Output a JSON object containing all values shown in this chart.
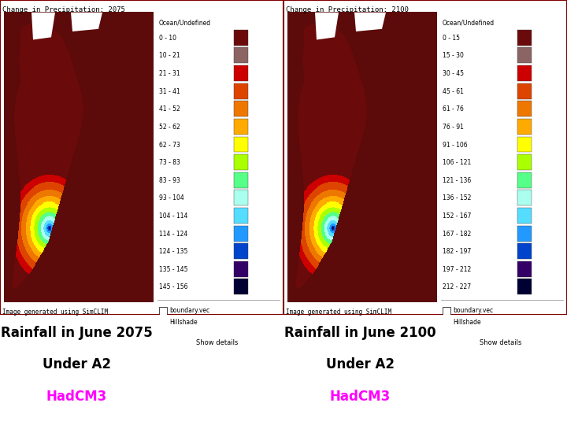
{
  "fig_width": 7.2,
  "fig_height": 5.4,
  "dpi": 100,
  "bg_color": "#ffffff",
  "left_title": "Rainfall in June 2075",
  "left_subtitle": "Under A2",
  "left_model": "HadCM3",
  "right_title": "Rainfall in June 2100",
  "right_subtitle": "Under A2",
  "right_model": "HadCM3",
  "title_fontsize": 12,
  "model_color": "#ff00ff",
  "title_color": "#000000",
  "panel_title_2075": "Change in Precipitation: 2075",
  "panel_title_2100": "Change in Precipitation: 2100",
  "legend_2075": [
    "Ocean/Undefined",
    "0 - 10",
    "10 - 21",
    "21 - 31",
    "31 - 41",
    "41 - 52",
    "52 - 62",
    "62 - 73",
    "73 - 83",
    "83 - 93",
    "93 - 104",
    "104 - 114",
    "114 - 124",
    "124 - 135",
    "135 - 145",
    "145 - 156"
  ],
  "legend_2100": [
    "Ocean/Undefined",
    "0 - 15",
    "15 - 30",
    "30 - 45",
    "45 - 61",
    "61 - 76",
    "76 - 91",
    "91 - 106",
    "106 - 121",
    "121 - 136",
    "136 - 152",
    "152 - 167",
    "167 - 182",
    "182 - 197",
    "197 - 212",
    "212 - 227"
  ],
  "legend_colors": [
    "#6b0a0a",
    "#8b6464",
    "#cc0000",
    "#dd4400",
    "#ee7700",
    "#ffaa00",
    "#ffff00",
    "#aaff00",
    "#55ff88",
    "#aaffee",
    "#55ddff",
    "#2299ff",
    "#0044cc",
    "#330088",
    "#000044"
  ],
  "footer_text": "Image generated using SimCLIM",
  "map_bg_color": "#6b0a0a",
  "ocean_color": "#6b0a0a"
}
